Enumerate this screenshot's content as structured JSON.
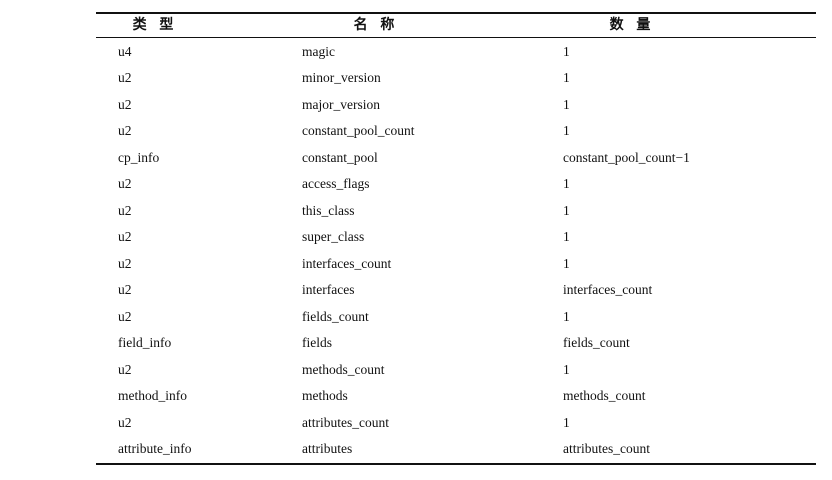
{
  "table": {
    "header": [
      "类 型",
      "名 称",
      "数 量"
    ],
    "rows": [
      [
        "u4",
        "magic",
        "1"
      ],
      [
        "u2",
        "minor_version",
        "1"
      ],
      [
        "u2",
        "major_version",
        "1"
      ],
      [
        "u2",
        "constant_pool_count",
        "1"
      ],
      [
        "cp_info",
        "constant_pool",
        "constant_pool_count−1"
      ],
      [
        "u2",
        "access_flags",
        "1"
      ],
      [
        "u2",
        "this_class",
        "1"
      ],
      [
        "u2",
        "super_class",
        "1"
      ],
      [
        "u2",
        "interfaces_count",
        "1"
      ],
      [
        "u2",
        "interfaces",
        "interfaces_count"
      ],
      [
        "u2",
        "fields_count",
        "1"
      ],
      [
        "field_info",
        "fields",
        "fields_count"
      ],
      [
        "u2",
        "methods_count",
        "1"
      ],
      [
        "method_info",
        "methods",
        "methods_count"
      ],
      [
        "u2",
        "attributes_count",
        "1"
      ],
      [
        "attribute_info",
        "attributes",
        "attributes_count"
      ]
    ]
  }
}
